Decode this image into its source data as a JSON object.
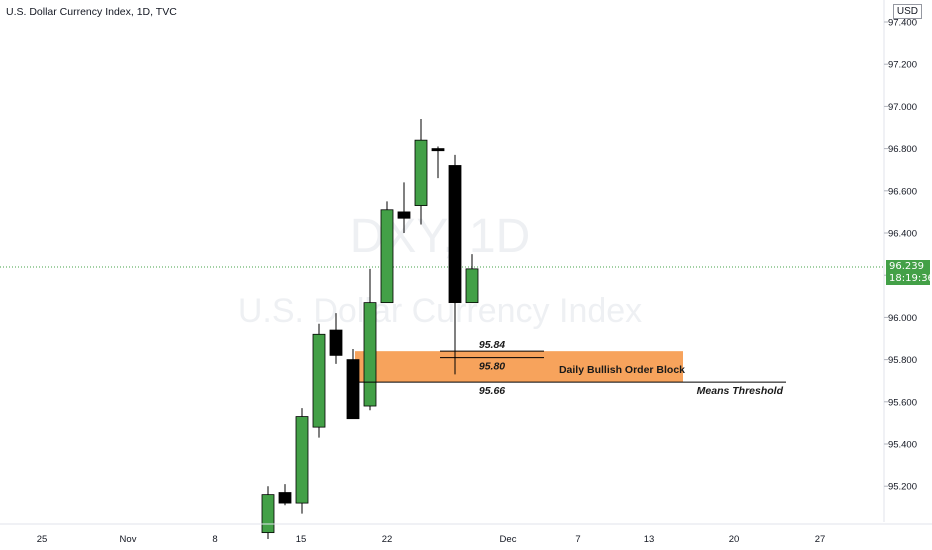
{
  "header": {
    "title": "U.S. Dollar Currency Index, 1D, TVC",
    "currency": "USD"
  },
  "watermark": {
    "symbol": "DXY, 1D",
    "name": "U.S. Dollar Currency Index"
  },
  "last_price": {
    "value": "96.239",
    "countdown": "18:19:36"
  },
  "colors": {
    "up": "#43a047",
    "down": "#000000",
    "zone": "#f7a35c",
    "price_line": "#43a047"
  },
  "chart_data": {
    "type": "candlestick",
    "y_ticks": [
      "97.400",
      "97.200",
      "97.000",
      "96.800",
      "96.600",
      "96.400",
      "96.200",
      "96.000",
      "95.800",
      "95.600",
      "95.400",
      "95.200"
    ],
    "y_values": [
      97.4,
      97.2,
      97.0,
      96.8,
      96.6,
      96.4,
      96.2,
      96.0,
      95.8,
      95.6,
      95.4,
      95.2
    ],
    "x_ticks": [
      "25",
      "Nov",
      "8",
      "15",
      "22",
      "Dec",
      "7",
      "13",
      "20",
      "27"
    ],
    "candles": [
      {
        "o": 94.98,
        "h": 95.2,
        "l": 94.95,
        "c": 95.16
      },
      {
        "o": 95.17,
        "h": 95.21,
        "l": 95.11,
        "c": 95.12
      },
      {
        "o": 95.12,
        "h": 95.57,
        "l": 95.07,
        "c": 95.53
      },
      {
        "o": 95.48,
        "h": 95.97,
        "l": 95.43,
        "c": 95.92
      },
      {
        "o": 95.94,
        "h": 96.02,
        "l": 95.78,
        "c": 95.82
      },
      {
        "o": 95.8,
        "h": 95.85,
        "l": 95.52,
        "c": 95.52
      },
      {
        "o": 95.58,
        "h": 96.23,
        "l": 95.56,
        "c": 96.07
      },
      {
        "o": 96.07,
        "h": 96.55,
        "l": 96.07,
        "c": 96.51
      },
      {
        "o": 96.5,
        "h": 96.64,
        "l": 96.4,
        "c": 96.47
      },
      {
        "o": 96.53,
        "h": 96.94,
        "l": 96.44,
        "c": 96.84
      },
      {
        "o": 96.8,
        "h": 96.81,
        "l": 96.66,
        "c": 96.79
      },
      {
        "o": 96.72,
        "h": 96.77,
        "l": 95.73,
        "c": 96.07
      },
      {
        "o": 96.07,
        "h": 96.3,
        "l": 96.07,
        "c": 96.23
      }
    ],
    "annotations": {
      "order_block": {
        "label": "Daily Bullish Order Block",
        "top": 95.84,
        "bottom": 95.66
      },
      "levels": [
        {
          "label": "95.84",
          "value": 95.84
        },
        {
          "label": "95.80",
          "value": 95.8
        },
        {
          "label": "95.66",
          "value": 95.66
        }
      ],
      "means_threshold": {
        "label": "Means Threshold",
        "value": 95.66
      }
    },
    "last_price": 96.239,
    "grid": false
  }
}
